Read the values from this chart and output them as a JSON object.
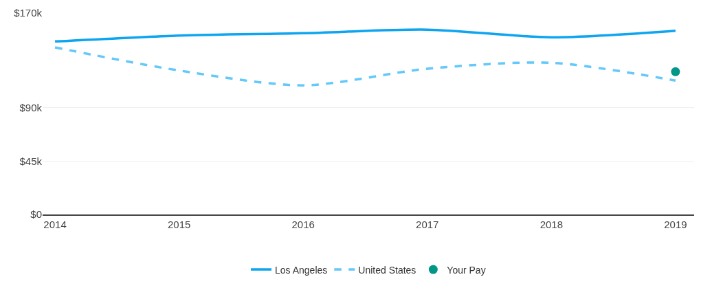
{
  "chart_data": {
    "type": "line",
    "x": [
      2014,
      2015,
      2016,
      2017,
      2018,
      2019
    ],
    "series": [
      {
        "name": "Los Angeles",
        "color": "#0ea5f0",
        "line_style": "solid",
        "values": [
          146000,
          151000,
          153000,
          156000,
          149500,
          155000
        ]
      },
      {
        "name": "United States",
        "color": "#63c8fa",
        "line_style": "dashed",
        "values": [
          141000,
          121500,
          109000,
          123000,
          128000,
          113000
        ]
      },
      {
        "name": "Your Pay",
        "type": "scatter",
        "color": "#009688",
        "marker": "circle",
        "x": [
          2019
        ],
        "values": [
          120500
        ]
      }
    ],
    "xlim": [
      2013.9,
      2019.15
    ],
    "xticks": [
      2014,
      2015,
      2016,
      2017,
      2018,
      2019
    ],
    "ylim": [
      0,
      170000
    ],
    "yticks": [
      {
        "value": 0,
        "label": "$0"
      },
      {
        "value": 45000,
        "label": "$45k"
      },
      {
        "value": 90000,
        "label": "$90k"
      },
      {
        "value": 170000,
        "label": "$170k"
      }
    ],
    "grid": "y",
    "legend": "bottom"
  }
}
